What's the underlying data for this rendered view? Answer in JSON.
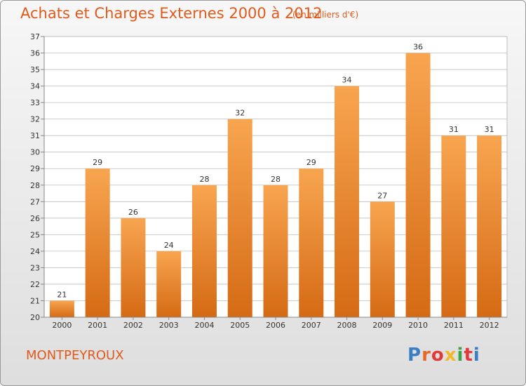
{
  "header": {
    "title": "Achats et Charges Externes 2000 à 2012",
    "subtitle": "(en milliers d'€)"
  },
  "footer": {
    "commune": "MONTPEYROUX",
    "logo_text": "Proxiti",
    "logo_colors": [
      "#3a7fc4",
      "#e8682a",
      "#e03a3a",
      "#f0b82a",
      "#3aa34a",
      "#e03a3a",
      "#3a7fc4"
    ]
  },
  "colors": {
    "bar_top": "#f8a550",
    "bar_bottom": "#d56a14",
    "accent": "#e05a1c",
    "grid": "#bdbdbd"
  },
  "chart_data": {
    "type": "bar",
    "title": "Achats et Charges Externes 2000 à 2012",
    "xlabel": "",
    "ylabel": "",
    "categories": [
      "2000",
      "2001",
      "2002",
      "2003",
      "2004",
      "2005",
      "2006",
      "2007",
      "2008",
      "2009",
      "2010",
      "2011",
      "2012"
    ],
    "values": [
      21,
      29,
      26,
      24,
      28,
      32,
      28,
      29,
      34,
      27,
      36,
      31,
      31
    ],
    "ylim": [
      20,
      37
    ],
    "yticks": [
      20,
      21,
      22,
      23,
      24,
      25,
      26,
      27,
      28,
      29,
      30,
      31,
      32,
      33,
      34,
      35,
      36,
      37
    ],
    "grid": true,
    "legend": "none"
  }
}
